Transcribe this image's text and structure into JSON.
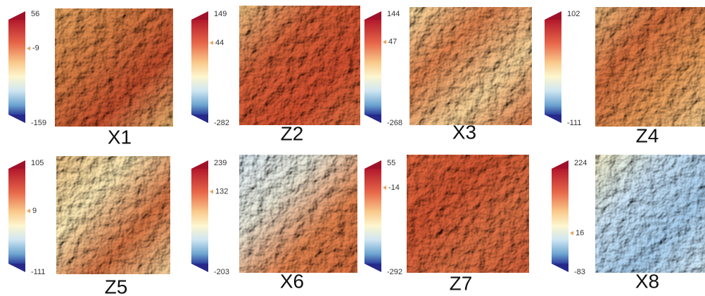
{
  "panels": [
    {
      "label": "X1",
      "max": 56,
      "mid": -9,
      "min": -159
    },
    {
      "label": "Z2",
      "max": 149,
      "mid": 44,
      "min": -282
    },
    {
      "label": "X3",
      "max": 144,
      "mid": 47,
      "min": -268
    },
    {
      "label": "Z4",
      "max": 102,
      "mid": null,
      "min": -111
    },
    {
      "label": "Z5",
      "max": 105,
      "mid": 9,
      "min": -111
    },
    {
      "label": "X6",
      "max": 239,
      "mid": 132,
      "min": -203
    },
    {
      "label": "Z7",
      "max": 55,
      "mid": -14,
      "min": -292
    },
    {
      "label": "X8",
      "max": 224,
      "mid": 16,
      "min": -83
    }
  ]
}
